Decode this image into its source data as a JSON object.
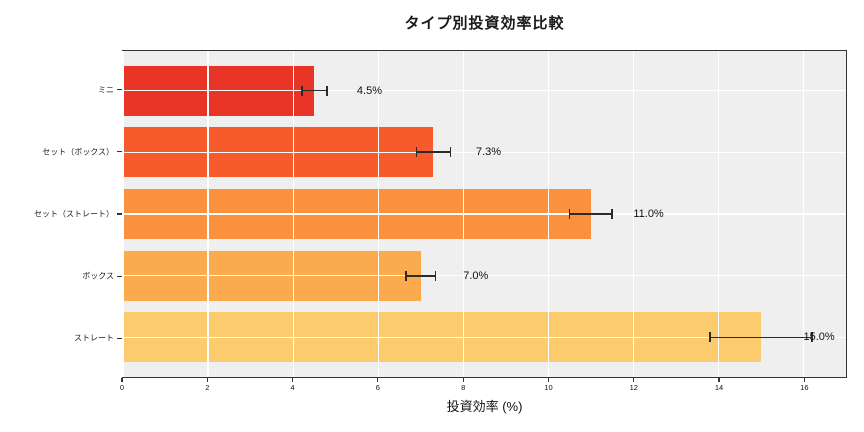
{
  "chart_data": {
    "type": "bar",
    "orientation": "horizontal",
    "title": "タイプ別投資効率比較",
    "xlabel": "投資効率 (%)",
    "ylabel": "",
    "categories": [
      "ミニ",
      "セット（ボックス）",
      "セット（ストレート）",
      "ボックス",
      "ストレート"
    ],
    "slugs": [
      "mini",
      "set-box",
      "set-straight",
      "box",
      "straight"
    ],
    "values": [
      4.5,
      7.3,
      11.0,
      7.0,
      15.0
    ],
    "errors": [
      0.3,
      0.4,
      0.5,
      0.35,
      1.2
    ],
    "value_labels": [
      "4.5%",
      "7.3%",
      "11.0%",
      "7.0%",
      "15.0%"
    ],
    "bar_colors": [
      "#e93428",
      "#f75b2c",
      "#fa913f",
      "#fbab4e",
      "#fccb6e"
    ],
    "xlim": [
      0,
      17
    ],
    "xticks": [
      0,
      2,
      4,
      6,
      8,
      10,
      12,
      14,
      16
    ],
    "label_offset": 1.0,
    "grid": true,
    "legend": null,
    "colors": {
      "plot_bg": "#efefef",
      "figure_bg": "#ffffff",
      "grid": "#ffffff",
      "errorbar": "#2b2b2b",
      "axis": "#333333",
      "text": "#111111"
    }
  }
}
